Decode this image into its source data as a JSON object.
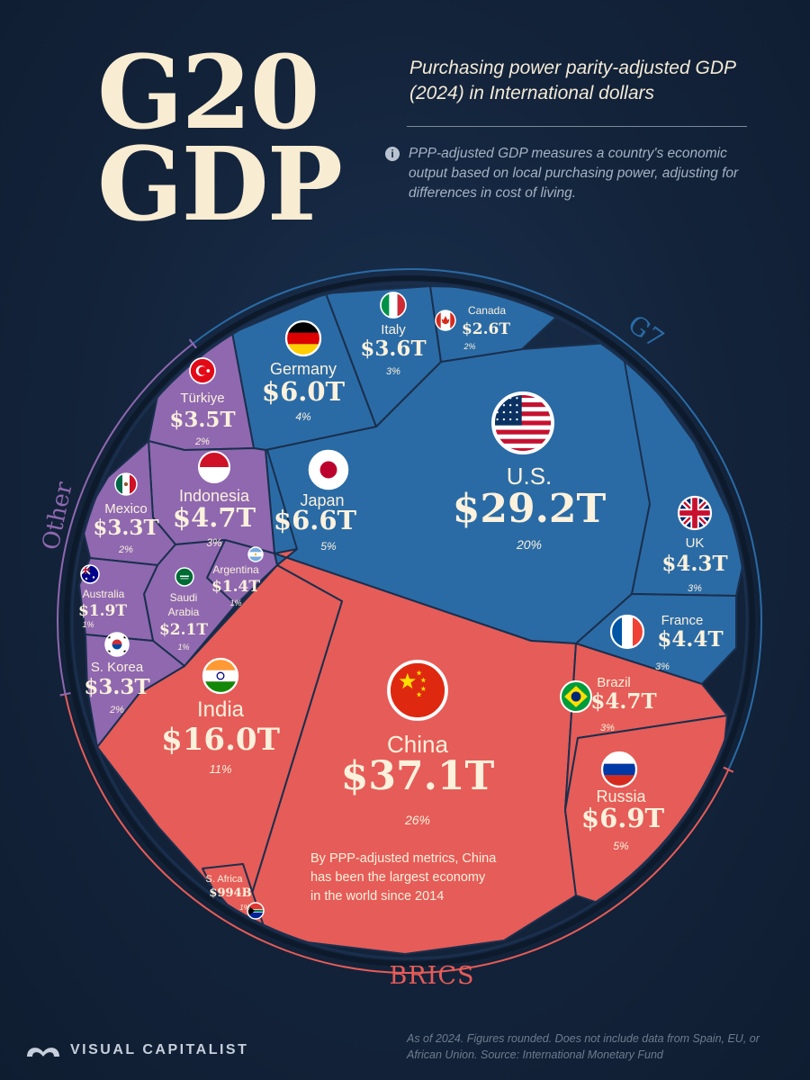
{
  "header": {
    "title_line1": "G20",
    "title_line2": "GDP",
    "subtitle": "Purchasing power parity-adjusted GDP (2024) in International dollars",
    "info_text": "PPP-adjusted GDP measures a country's economic output based on local purchasing power, adjusting for differences in cost of living."
  },
  "footer": {
    "note": "As of 2024. Figures rounded. Does not include data from Spain, EU, or African Union. Source: International Monetary Fund",
    "brand": "VISUAL CAPITALIST"
  },
  "colors": {
    "background": "#13233a",
    "g7": "#2a6ba6",
    "brics": "#e65c58",
    "other": "#8f68b0",
    "cell_border": "#1a2f4d",
    "label_text": "#fbf1dc",
    "title_text": "#f8ecd2"
  },
  "chart_data": {
    "type": "voronoi-treemap",
    "groups": [
      {
        "name": "G7",
        "label_color": "#2a6ba6"
      },
      {
        "name": "BRICS",
        "label_color": "#e65c58"
      },
      {
        "name": "Other",
        "label_color": "#8f68b0"
      }
    ],
    "annotation": "By PPP-adjusted metrics, China has been the largest economy in the world since 2014",
    "countries": [
      {
        "name": "U.S.",
        "value_label": "$29.2T",
        "value_trillions": 29.2,
        "share": "20%",
        "group": "G7",
        "flag": "us-flag"
      },
      {
        "name": "Japan",
        "value_label": "$6.6T",
        "value_trillions": 6.6,
        "share": "5%",
        "group": "G7",
        "flag": "japan-flag"
      },
      {
        "name": "Germany",
        "value_label": "$6.0T",
        "value_trillions": 6.0,
        "share": "4%",
        "group": "G7",
        "flag": "germany-flag"
      },
      {
        "name": "Italy",
        "value_label": "$3.6T",
        "value_trillions": 3.6,
        "share": "3%",
        "group": "G7",
        "flag": "italy-flag"
      },
      {
        "name": "Canada",
        "value_label": "$2.6T",
        "value_trillions": 2.6,
        "share": "2%",
        "group": "G7",
        "flag": "canada-flag"
      },
      {
        "name": "UK",
        "value_label": "$4.3T",
        "value_trillions": 4.3,
        "share": "3%",
        "group": "G7",
        "flag": "uk-flag"
      },
      {
        "name": "France",
        "value_label": "$4.4T",
        "value_trillions": 4.4,
        "share": "3%",
        "group": "G7",
        "flag": "france-flag"
      },
      {
        "name": "China",
        "value_label": "$37.1T",
        "value_trillions": 37.1,
        "share": "26%",
        "group": "BRICS",
        "flag": "china-flag"
      },
      {
        "name": "India",
        "value_label": "$16.0T",
        "value_trillions": 16.0,
        "share": "11%",
        "group": "BRICS",
        "flag": "india-flag"
      },
      {
        "name": "Brazil",
        "value_label": "$4.7T",
        "value_trillions": 4.7,
        "share": "3%",
        "group": "BRICS",
        "flag": "brazil-flag"
      },
      {
        "name": "Russia",
        "value_label": "$6.9T",
        "value_trillions": 6.9,
        "share": "5%",
        "group": "BRICS",
        "flag": "russia-flag"
      },
      {
        "name": "S. Africa",
        "value_label": "$994B",
        "value_trillions": 0.994,
        "share": "1%",
        "group": "BRICS",
        "flag": "south-africa-flag"
      },
      {
        "name": "Türkiye",
        "value_label": "$3.5T",
        "value_trillions": 3.5,
        "share": "2%",
        "group": "Other",
        "flag": "turkiye-flag"
      },
      {
        "name": "Indonesia",
        "value_label": "$4.7T",
        "value_trillions": 4.7,
        "share": "3%",
        "group": "Other",
        "flag": "indonesia-flag"
      },
      {
        "name": "Mexico",
        "value_label": "$3.3T",
        "value_trillions": 3.3,
        "share": "2%",
        "group": "Other",
        "flag": "mexico-flag"
      },
      {
        "name": "Argentina",
        "value_label": "$1.4T",
        "value_trillions": 1.4,
        "share": "1%",
        "group": "Other",
        "flag": "argentina-flag"
      },
      {
        "name": "Saudi Arabia",
        "value_label": "$2.1T",
        "value_trillions": 2.1,
        "share": "1%",
        "group": "Other",
        "flag": "saudi-arabia-flag"
      },
      {
        "name": "Australia",
        "value_label": "$1.9T",
        "value_trillions": 1.9,
        "share": "1%",
        "group": "Other",
        "flag": "australia-flag"
      },
      {
        "name": "S. Korea",
        "value_label": "$3.3T",
        "value_trillions": 3.3,
        "share": "2%",
        "group": "Other",
        "flag": "south-korea-flag"
      }
    ]
  }
}
